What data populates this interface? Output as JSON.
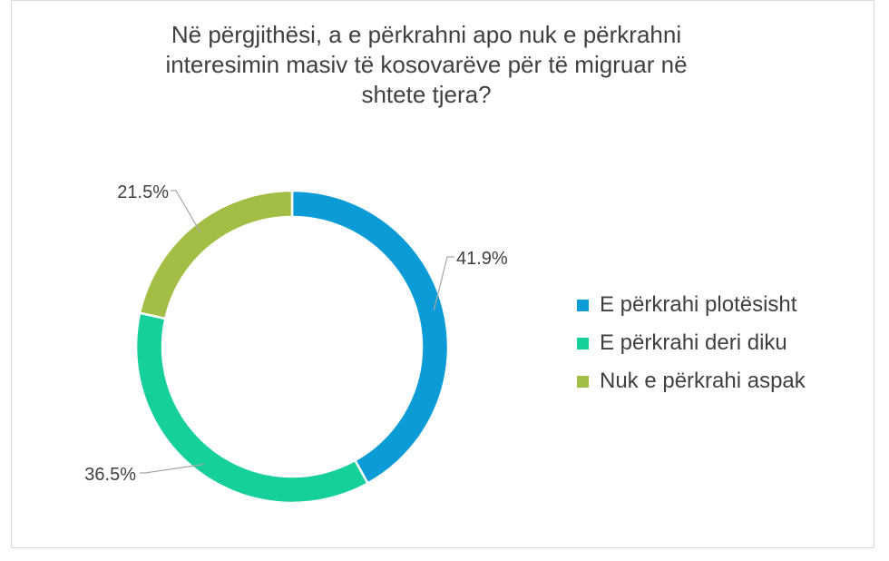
{
  "chart_data": {
    "type": "pie",
    "variant": "donut",
    "title": "Në përgjithësi, a e përkrahni apo nuk e përkrahni\ninteresimin masiv të kosovarëve për të migruar në\nshtete tjera?",
    "categories": [
      "E përkrahi plotësisht",
      "E përkrahi deri diku",
      "Nuk e përkrahi aspak"
    ],
    "values": [
      41.9,
      36.5,
      21.5
    ],
    "value_labels": [
      "41.9%",
      "36.5%",
      "21.5%"
    ],
    "colors": [
      "#0B9BD7",
      "#15D09B",
      "#A3BE45"
    ],
    "legend_position": "right"
  }
}
